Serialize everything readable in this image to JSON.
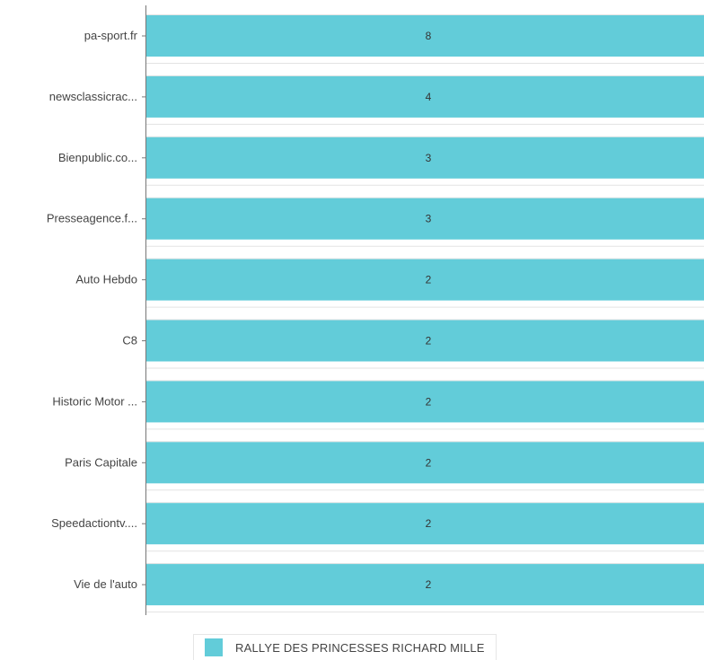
{
  "chart_data": {
    "type": "bar",
    "orientation": "horizontal",
    "title": "",
    "xlabel": "",
    "ylabel": "",
    "categories": [
      "pa-sport.fr",
      "newsclassicrac...",
      "Bienpublic.co...",
      "Presseagence.f...",
      "Auto Hebdo",
      "C8",
      "Historic Motor ...",
      "Paris Capitale",
      "Speedactiontv....",
      "Vie de l'auto"
    ],
    "series": [
      {
        "name": "RALLYE DES PRINCESSES RICHARD MILLE",
        "color": "#62ccd9",
        "values": [
          8,
          4,
          3,
          3,
          2,
          2,
          2,
          2,
          2,
          2
        ]
      }
    ],
    "grid": true,
    "legend": {
      "position": "bottom",
      "entries": [
        "RALLYE DES PRINCESSES RICHARD MILLE"
      ]
    }
  }
}
